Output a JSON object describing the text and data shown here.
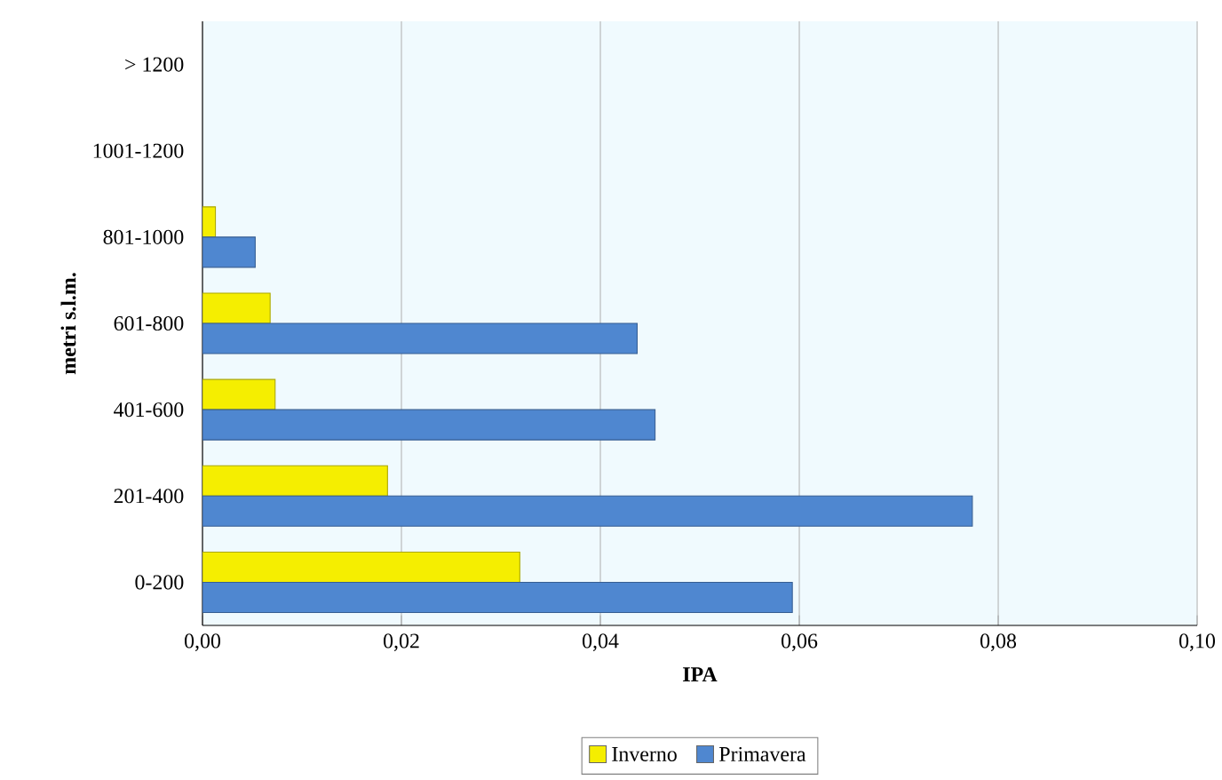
{
  "chart_data": {
    "type": "bar",
    "orientation": "horizontal",
    "xlabel": "IPA",
    "ylabel": "metri s.l.m.",
    "categories": [
      "> 1200",
      "1001-1200",
      "801-1000",
      "601-800",
      "401-600",
      "201-400",
      "0-200"
    ],
    "series": [
      {
        "name": "Inverno",
        "color": "#f5ee00",
        "values": [
          null,
          null,
          0.0013,
          0.0068,
          0.0073,
          0.0186,
          0.0319
        ]
      },
      {
        "name": "Primavera",
        "color": "#4f87d0",
        "values": [
          null,
          null,
          0.0053,
          0.0437,
          0.0455,
          0.0774,
          0.0593
        ]
      }
    ],
    "xlim": [
      0,
      0.1
    ],
    "xticks": [
      {
        "value": 0,
        "label": "0,00"
      },
      {
        "value": 0.02,
        "label": "0,02"
      },
      {
        "value": 0.04,
        "label": "0,04"
      },
      {
        "value": 0.06,
        "label": "0,06"
      },
      {
        "value": 0.08,
        "label": "0,08"
      },
      {
        "value": 0.1,
        "label": "0,10"
      }
    ],
    "grid": "x",
    "legend": "bottom"
  }
}
